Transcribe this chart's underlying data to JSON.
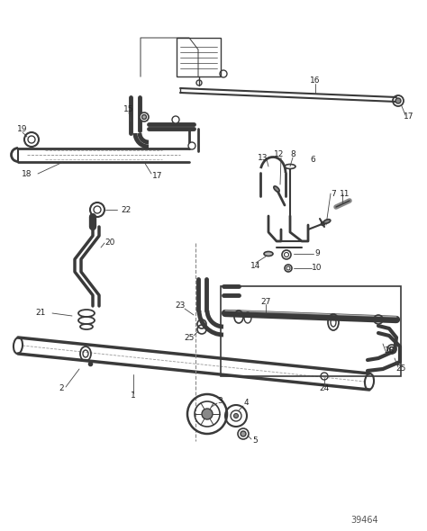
{
  "bg_color": "#ffffff",
  "lc": "#3a3a3a",
  "lc_thin": "#555555",
  "fig_width": 4.74,
  "fig_height": 5.9,
  "dpi": 100,
  "watermark": "39464"
}
